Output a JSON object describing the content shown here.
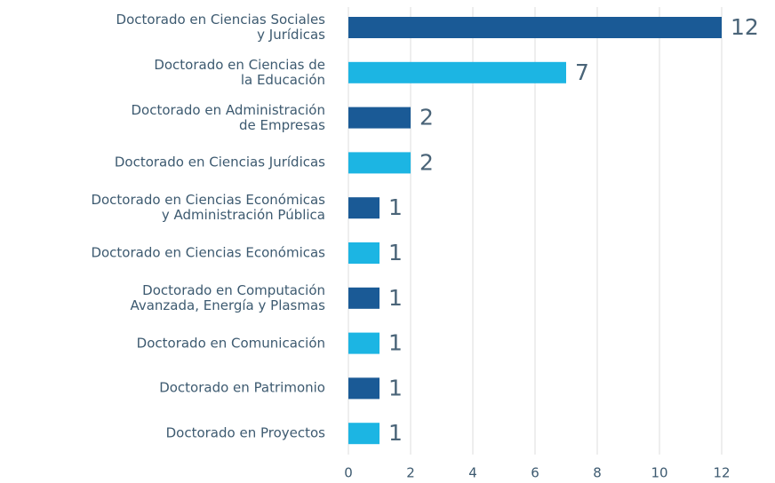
{
  "chart_data": {
    "type": "barh",
    "categories": [
      "Doctorado en Ciencias Sociales\ny Jurídicas",
      "Doctorado en Ciencias de\nla Educación",
      "Doctorado en Administración\nde Empresas",
      "Doctorado en Ciencias Jurídicas",
      "Doctorado en Ciencias Económicas\ny Administración Pública",
      "Doctorado en Ciencias Económicas",
      "Doctorado en Computación\nAvanzada, Energía y Plasmas",
      "Doctorado en Comunicación",
      "Doctorado en Patrimonio",
      "Doctorado en Proyectos"
    ],
    "values": [
      12,
      7,
      2,
      2,
      1,
      1,
      1,
      1,
      1,
      1
    ],
    "colors": [
      "#1a5a96",
      "#1cb5e3",
      "#1a5a96",
      "#1cb5e3",
      "#1a5a96",
      "#1cb5e3",
      "#1a5a96",
      "#1cb5e3",
      "#1a5a96",
      "#1cb5e3"
    ],
    "xlim": [
      0,
      12
    ],
    "xticks": [
      0,
      2,
      4,
      6,
      8,
      10,
      12
    ],
    "grid": true
  }
}
